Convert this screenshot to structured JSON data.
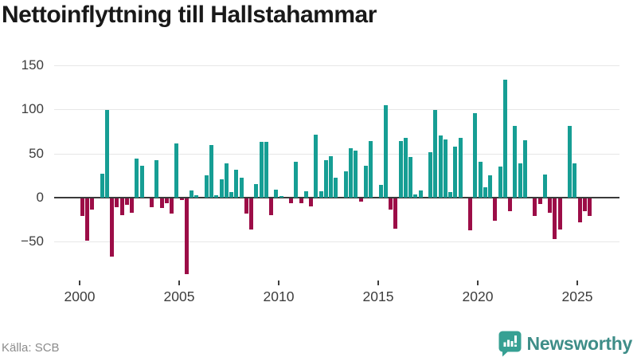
{
  "title": "Nettoinflyttning till Hallstahammar",
  "source": "Källa: SCB",
  "brand": {
    "name": "Newsworthy",
    "icon": "bar-chart-speech-bubble-icon"
  },
  "colors": {
    "positive_bar": "#169e94",
    "negative_bar": "#9c0d47",
    "zero_line": "#3a3a3a",
    "gridline": "#e7e7e7",
    "axis_text": "#3d3d3d",
    "title_text": "#191919",
    "source_text": "#8c8c8c",
    "brand_teal": "#3e8d88"
  },
  "chart_data": {
    "type": "bar",
    "title": "Nettoinflyttning till Hallstahammar",
    "xlabel": "",
    "ylabel": "",
    "frequency": "quarterly",
    "start_year": 2000,
    "start_quarter": 1,
    "grid": "horizontal-only",
    "legend": "none",
    "ylim": [
      -95,
      165
    ],
    "y_ticks": [
      150,
      100,
      50,
      0,
      -50
    ],
    "y_tick_labels": [
      "150",
      "100",
      "50",
      "0",
      "−50"
    ],
    "x_tick_years": [
      2000,
      2005,
      2010,
      2015,
      2020,
      2025
    ],
    "x_tick_labels": [
      "2000",
      "2005",
      "2010",
      "2015",
      "2020",
      "2025"
    ],
    "values": [
      -20,
      -48,
      -13,
      0,
      27,
      99,
      -66,
      -10,
      -19,
      -7,
      -16,
      44,
      36,
      0,
      -10,
      42,
      -11,
      -5,
      -17,
      61,
      -2,
      -86,
      8,
      3,
      0,
      25,
      60,
      3,
      21,
      39,
      6,
      32,
      23,
      -17,
      -35,
      15,
      63,
      63,
      -19,
      9,
      2,
      0,
      -5,
      41,
      -5,
      7,
      -9,
      71,
      7,
      42,
      47,
      23,
      0,
      30,
      56,
      53,
      -4,
      36,
      64,
      0,
      14,
      105,
      -13,
      -34,
      64,
      68,
      46,
      4,
      8,
      0,
      51,
      99,
      70,
      66,
      6,
      58,
      68,
      0,
      -36,
      96,
      41,
      12,
      25,
      -25,
      35,
      134,
      -14,
      81,
      39,
      65,
      0,
      -20,
      -6,
      26,
      -16,
      -46,
      -35,
      0,
      81,
      39,
      -27,
      -14,
      -20
    ]
  }
}
